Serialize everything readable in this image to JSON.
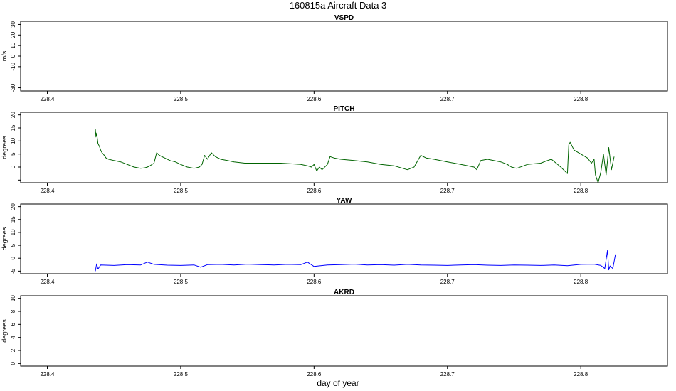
{
  "title": "160815a   Aircraft Data 3",
  "xlabel": "day of year",
  "chart_data": [
    {
      "type": "line",
      "title": "VSPD",
      "ylabel": "m/s",
      "xlim": [
        228.38,
        228.865
      ],
      "ylim": [
        -33,
        33
      ],
      "x_ticks": [
        228.4,
        228.5,
        228.6,
        228.7,
        228.8
      ],
      "y_ticks": [
        -30,
        -10,
        0,
        10,
        20,
        30
      ],
      "y_tick_labels": [
        "-30",
        "-10",
        "0",
        "10",
        "20",
        "30"
      ],
      "color": "#000000",
      "series": [
        {
          "x": [
            228.38,
            228.865
          ],
          "y": [
            -33,
            -33
          ]
        }
      ]
    },
    {
      "type": "line",
      "title": "PITCH",
      "ylabel": "degrees",
      "xlim": [
        228.38,
        228.865
      ],
      "ylim": [
        -6,
        21
      ],
      "x_ticks": [
        228.4,
        228.5,
        228.6,
        228.7,
        228.8
      ],
      "y_ticks": [
        -5,
        0,
        5,
        10,
        15,
        20
      ],
      "y_tick_labels": [
        "",
        "0",
        "5",
        "10",
        "15",
        "20"
      ],
      "color": "#006400",
      "series": [
        {
          "x": [
            228.436,
            228.4365,
            228.437,
            228.438,
            228.439,
            228.44,
            228.441,
            228.442,
            228.444,
            228.446,
            228.45,
            228.455,
            228.46,
            228.465,
            228.47,
            228.473,
            228.475,
            228.477,
            228.48,
            228.482,
            228.484,
            228.488,
            228.492,
            228.496,
            228.5,
            228.505,
            228.51,
            228.514,
            228.516,
            228.518,
            228.52,
            228.523,
            228.526,
            228.53,
            228.535,
            228.54,
            228.548,
            228.555,
            228.565,
            228.575,
            228.585,
            228.59,
            228.595,
            228.598,
            228.6,
            228.602,
            228.604,
            228.606,
            228.61,
            228.612,
            228.615,
            228.62,
            228.63,
            228.64,
            228.65,
            228.66,
            228.67,
            228.675,
            228.68,
            228.684,
            228.69,
            228.7,
            228.71,
            228.72,
            228.722,
            228.725,
            228.73,
            228.74,
            228.745,
            228.748,
            228.752,
            228.76,
            228.77,
            228.775,
            228.778,
            228.785,
            228.79,
            228.791,
            228.792,
            228.795,
            228.8,
            228.805,
            228.808,
            228.81,
            228.811,
            228.813,
            228.815,
            228.817,
            228.819,
            228.821,
            228.823,
            228.825
          ],
          "y": [
            14.5,
            11.5,
            13,
            9,
            8,
            6.5,
            5.5,
            5,
            3.5,
            3,
            2.5,
            2,
            1,
            0,
            -0.5,
            -0.3,
            0,
            0.5,
            1.5,
            5.5,
            4.5,
            3.5,
            2.5,
            2,
            1,
            0,
            -0.5,
            0,
            1,
            4.5,
            3,
            5.5,
            4,
            3,
            2.5,
            2,
            1.5,
            1.5,
            1.5,
            1.5,
            1.2,
            1,
            0.5,
            0,
            1,
            -1.5,
            0,
            -1,
            1,
            4,
            3.5,
            3,
            2.5,
            2,
            1,
            0.5,
            -1,
            0,
            4.5,
            3.5,
            3,
            2,
            1,
            0,
            -1,
            2.5,
            3,
            2,
            1,
            0,
            -0.5,
            1,
            1.5,
            2.5,
            3,
            0,
            -2.5,
            8.5,
            9.5,
            6.5,
            5,
            3.5,
            1.5,
            3,
            -3,
            -6,
            -2,
            5,
            -3,
            7.5,
            -1,
            4
          ]
        }
      ]
    },
    {
      "type": "line",
      "title": "YAW",
      "ylabel": "degrees",
      "xlim": [
        228.38,
        228.865
      ],
      "ylim": [
        -6,
        21
      ],
      "x_ticks": [
        228.4,
        228.5,
        228.6,
        228.7,
        228.8
      ],
      "y_ticks": [
        -5,
        0,
        5,
        10,
        15,
        20
      ],
      "y_tick_labels": [
        "-5",
        "0",
        "5",
        "10",
        "15",
        "20"
      ],
      "color": "#0000ff",
      "series": [
        {
          "x": [
            228.436,
            228.437,
            228.438,
            228.44,
            228.45,
            228.46,
            228.47,
            228.475,
            228.48,
            228.49,
            228.5,
            228.51,
            228.515,
            228.52,
            228.53,
            228.54,
            228.55,
            228.56,
            228.57,
            228.58,
            228.59,
            228.595,
            228.6,
            228.61,
            228.62,
            228.63,
            228.64,
            228.65,
            228.66,
            228.67,
            228.68,
            228.69,
            228.7,
            228.71,
            228.72,
            228.73,
            228.74,
            228.75,
            228.76,
            228.77,
            228.78,
            228.79,
            228.8,
            228.81,
            228.815,
            228.818,
            228.82,
            228.821,
            228.822,
            228.824,
            228.826
          ],
          "y": [
            -5,
            -2.2,
            -4.2,
            -2.6,
            -2.8,
            -2.5,
            -2.6,
            -1.5,
            -2.4,
            -2.7,
            -2.8,
            -2.6,
            -3.5,
            -2.5,
            -2.4,
            -2.6,
            -2.3,
            -2.5,
            -2.6,
            -2.4,
            -2.5,
            -1.5,
            -3.2,
            -2.6,
            -2.5,
            -2.3,
            -2.6,
            -2.5,
            -2.7,
            -2.4,
            -2.6,
            -2.7,
            -2.8,
            -2.6,
            -2.5,
            -2.7,
            -2.8,
            -2.6,
            -2.7,
            -2.8,
            -2.6,
            -2.9,
            -2.4,
            -2.3,
            -2.8,
            -4,
            3,
            -4.5,
            -3,
            -4,
            1.5
          ]
        }
      ]
    },
    {
      "type": "line",
      "title": "AKRD",
      "ylabel": "degrees",
      "xlim": [
        228.38,
        228.865
      ],
      "ylim": [
        -0.4,
        10.4
      ],
      "x_ticks": [
        228.4,
        228.5,
        228.6,
        228.7,
        228.8
      ],
      "y_ticks": [
        0,
        2,
        4,
        6,
        8,
        10
      ],
      "y_tick_labels": [
        "0",
        "2",
        "4",
        "6",
        "8",
        "10"
      ],
      "color": "#000000",
      "series": []
    }
  ]
}
